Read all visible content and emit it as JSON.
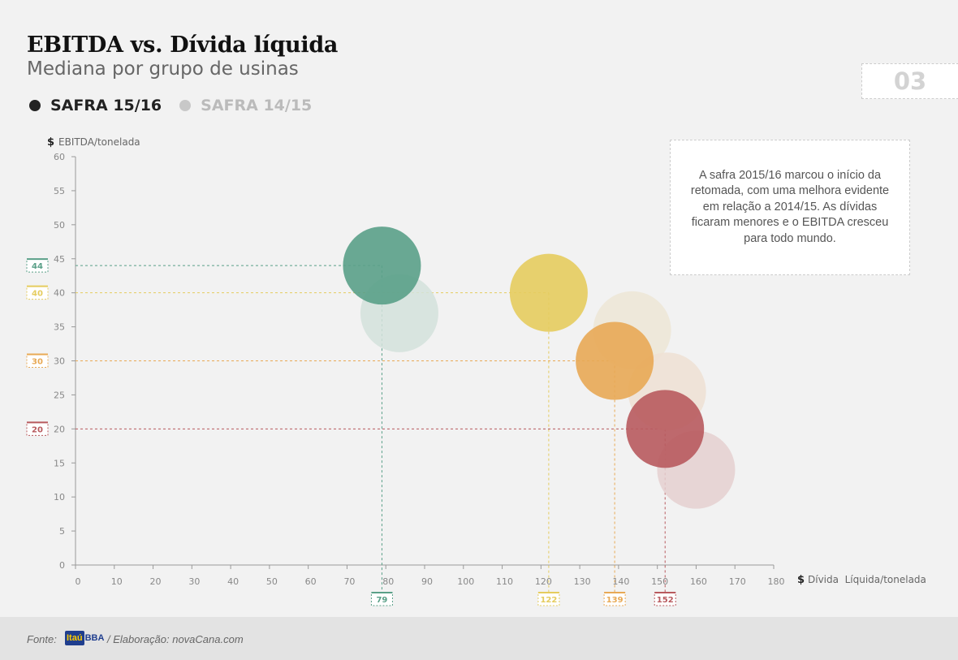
{
  "header": {
    "title": "EBITDA vs. Dívida líquida",
    "subtitle": "Mediana por grupo de usinas",
    "page_number": "03"
  },
  "legend": [
    {
      "label": "SAFRA 15/16",
      "color": "#222222"
    },
    {
      "label": "SAFRA 14/15",
      "color": "#c8c8c8"
    }
  ],
  "note": "A safra 2015/16 marcou o início da retomada, com uma melhora evidente em relação a 2014/15. As dívidas ficaram menores e o EBITDA cresceu para todo mundo.",
  "footer": {
    "source_label": "Fonte:",
    "logo_text": "Itaú",
    "logo_suffix": "BBA",
    "credit": "/ Elaboração: novaCana.com"
  },
  "chart_data": {
    "type": "scatter",
    "ylabel_symbol": "$",
    "ylabel": "EBITDA/tonelada",
    "xlabel_symbol": "$",
    "xlabel": "Dívida  Líquida/tonelada",
    "xlim": [
      0,
      180
    ],
    "ylim": [
      0,
      60
    ],
    "xticks": [
      0,
      10,
      20,
      30,
      40,
      50,
      60,
      70,
      80,
      90,
      100,
      110,
      120,
      130,
      140,
      150,
      160,
      170,
      180
    ],
    "yticks": [
      0,
      5,
      10,
      15,
      20,
      25,
      30,
      35,
      40,
      45,
      50,
      55,
      60
    ],
    "series": [
      {
        "name": "SAFRA 15/16",
        "points": [
          {
            "x": 79,
            "y": 44,
            "color": "#5aa088"
          },
          {
            "x": 122,
            "y": 40,
            "color": "#e5cc5e"
          },
          {
            "x": 139,
            "y": 30,
            "color": "#e8a955"
          },
          {
            "x": 152,
            "y": 20,
            "color": "#b85a5e"
          }
        ]
      },
      {
        "name": "SAFRA 14/15",
        "points": [
          {
            "x": 83.5,
            "y": 37,
            "color": "#d3e2dc"
          },
          {
            "x": 143.5,
            "y": 34.5,
            "color": "#ede6d6"
          },
          {
            "x": 152.5,
            "y": 25.5,
            "color": "#efe1d3"
          },
          {
            "x": 160,
            "y": 14,
            "color": "#e5d0d0"
          }
        ]
      }
    ],
    "x_markers": [
      {
        "value": "79",
        "color": "#5aa088"
      },
      {
        "value": "122",
        "color": "#e5cc5e"
      },
      {
        "value": "139",
        "color": "#e8a955"
      },
      {
        "value": "152",
        "color": "#b85a5e"
      }
    ],
    "y_markers": [
      {
        "value": "44",
        "color": "#5aa088"
      },
      {
        "value": "40",
        "color": "#e5cc5e"
      },
      {
        "value": "30",
        "color": "#e8a955"
      },
      {
        "value": "20",
        "color": "#b85a5e"
      }
    ]
  }
}
